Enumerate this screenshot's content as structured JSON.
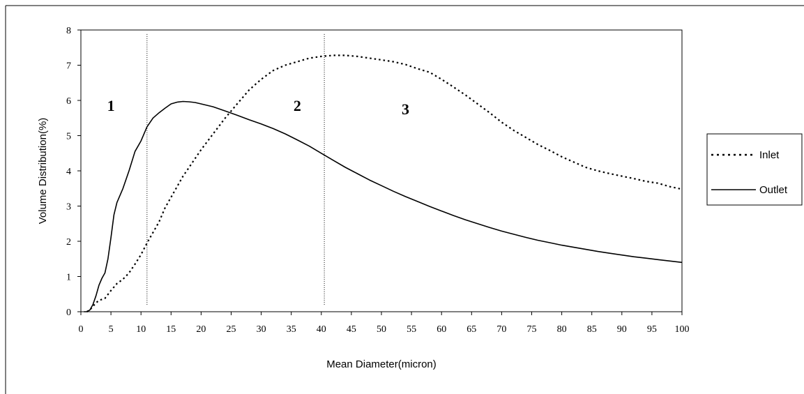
{
  "chart_data": {
    "type": "line",
    "title": "",
    "xlabel": "Mean Diameter(micron)",
    "ylabel": "Volume Distribution(%)",
    "xlim": [
      0,
      100
    ],
    "ylim": [
      0,
      8
    ],
    "x_ticks": [
      "0",
      "5",
      "10",
      "15",
      "20",
      "25",
      "30",
      "35",
      "40",
      "45",
      "50",
      "55",
      "60",
      "65",
      "70",
      "75",
      "80",
      "85",
      "90",
      "95",
      "100"
    ],
    "y_ticks": [
      "0",
      "1",
      "2",
      "3",
      "4",
      "5",
      "6",
      "7",
      "8"
    ],
    "grid": false,
    "legend_position": "right",
    "series": [
      {
        "name": "Inlet",
        "style": "dotted",
        "color": "#000000",
        "points": [
          [
            1,
            0
          ],
          [
            1.5,
            0.05
          ],
          [
            2,
            0.15
          ],
          [
            2.5,
            0.25
          ],
          [
            3,
            0.32
          ],
          [
            4,
            0.38
          ],
          [
            5,
            0.6
          ],
          [
            6,
            0.8
          ],
          [
            7,
            0.92
          ],
          [
            8,
            1.1
          ],
          [
            9,
            1.35
          ],
          [
            10,
            1.62
          ],
          [
            11,
            1.95
          ],
          [
            12,
            2.25
          ],
          [
            13,
            2.55
          ],
          [
            14,
            2.95
          ],
          [
            15,
            3.25
          ],
          [
            16,
            3.55
          ],
          [
            17,
            3.85
          ],
          [
            18,
            4.1
          ],
          [
            19,
            4.35
          ],
          [
            20,
            4.6
          ],
          [
            22,
            5.05
          ],
          [
            24,
            5.5
          ],
          [
            26,
            5.9
          ],
          [
            28,
            6.3
          ],
          [
            30,
            6.6
          ],
          [
            32,
            6.85
          ],
          [
            34,
            7.0
          ],
          [
            36,
            7.1
          ],
          [
            38,
            7.2
          ],
          [
            40,
            7.25
          ],
          [
            42,
            7.28
          ],
          [
            44,
            7.28
          ],
          [
            46,
            7.25
          ],
          [
            48,
            7.2
          ],
          [
            50,
            7.15
          ],
          [
            52,
            7.1
          ],
          [
            54,
            7.02
          ],
          [
            56,
            6.9
          ],
          [
            58,
            6.8
          ],
          [
            60,
            6.6
          ],
          [
            62,
            6.38
          ],
          [
            64,
            6.15
          ],
          [
            66,
            5.9
          ],
          [
            68,
            5.65
          ],
          [
            70,
            5.38
          ],
          [
            72,
            5.15
          ],
          [
            74,
            4.95
          ],
          [
            76,
            4.75
          ],
          [
            78,
            4.58
          ],
          [
            80,
            4.4
          ],
          [
            82,
            4.25
          ],
          [
            84,
            4.1
          ],
          [
            86,
            4.0
          ],
          [
            88,
            3.92
          ],
          [
            90,
            3.85
          ],
          [
            92,
            3.78
          ],
          [
            94,
            3.7
          ],
          [
            96,
            3.65
          ],
          [
            98,
            3.55
          ],
          [
            100,
            3.48
          ]
        ]
      },
      {
        "name": "Outlet",
        "style": "solid",
        "color": "#000000",
        "points": [
          [
            0.5,
            0
          ],
          [
            1,
            0
          ],
          [
            1.5,
            0.05
          ],
          [
            2,
            0.2
          ],
          [
            2.5,
            0.45
          ],
          [
            3,
            0.75
          ],
          [
            3.5,
            0.95
          ],
          [
            4,
            1.1
          ],
          [
            4.5,
            1.5
          ],
          [
            5,
            2.1
          ],
          [
            5.5,
            2.75
          ],
          [
            6,
            3.1
          ],
          [
            7,
            3.5
          ],
          [
            8,
            4.0
          ],
          [
            9,
            4.55
          ],
          [
            10,
            4.85
          ],
          [
            11,
            5.25
          ],
          [
            12,
            5.5
          ],
          [
            13,
            5.65
          ],
          [
            14,
            5.78
          ],
          [
            15,
            5.9
          ],
          [
            16,
            5.95
          ],
          [
            17,
            5.97
          ],
          [
            18,
            5.96
          ],
          [
            19,
            5.94
          ],
          [
            20,
            5.9
          ],
          [
            22,
            5.82
          ],
          [
            24,
            5.7
          ],
          [
            26,
            5.58
          ],
          [
            28,
            5.45
          ],
          [
            30,
            5.33
          ],
          [
            32,
            5.2
          ],
          [
            34,
            5.05
          ],
          [
            36,
            4.88
          ],
          [
            38,
            4.7
          ],
          [
            40,
            4.5
          ],
          [
            42,
            4.3
          ],
          [
            44,
            4.1
          ],
          [
            46,
            3.92
          ],
          [
            48,
            3.74
          ],
          [
            50,
            3.58
          ],
          [
            52,
            3.42
          ],
          [
            54,
            3.27
          ],
          [
            56,
            3.13
          ],
          [
            58,
            2.99
          ],
          [
            60,
            2.86
          ],
          [
            62,
            2.73
          ],
          [
            64,
            2.61
          ],
          [
            66,
            2.5
          ],
          [
            68,
            2.39
          ],
          [
            70,
            2.29
          ],
          [
            72,
            2.2
          ],
          [
            74,
            2.11
          ],
          [
            76,
            2.03
          ],
          [
            78,
            1.96
          ],
          [
            80,
            1.89
          ],
          [
            82,
            1.83
          ],
          [
            84,
            1.77
          ],
          [
            86,
            1.71
          ],
          [
            88,
            1.66
          ],
          [
            90,
            1.61
          ],
          [
            92,
            1.56
          ],
          [
            94,
            1.52
          ],
          [
            96,
            1.48
          ],
          [
            98,
            1.44
          ],
          [
            100,
            1.4
          ]
        ]
      }
    ],
    "reference_lines": [
      {
        "x": 11,
        "y_range": [
          0.2,
          7.9
        ],
        "style": "dotted"
      },
      {
        "x": 40.5,
        "y_range": [
          0.2,
          7.9
        ],
        "style": "dotted"
      }
    ],
    "annotations": [
      {
        "text": "1",
        "x": 5,
        "y": 5.7
      },
      {
        "text": "2",
        "x": 36,
        "y": 5.7
      },
      {
        "text": "3",
        "x": 54,
        "y": 5.6
      }
    ]
  }
}
